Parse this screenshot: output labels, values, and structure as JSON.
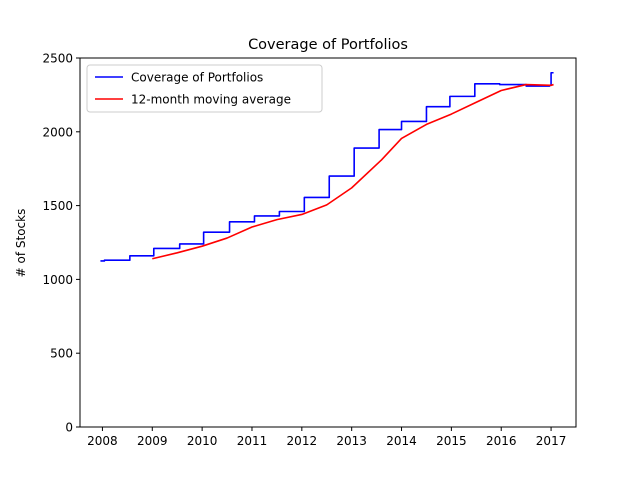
{
  "chart_data": {
    "type": "line",
    "title": "Coverage of Portfolios",
    "xlabel": "",
    "ylabel": "# of Stocks",
    "xlim": [
      2007.55,
      2017.5
    ],
    "ylim": [
      0,
      2500
    ],
    "x_ticks": [
      2008,
      2009,
      2010,
      2011,
      2012,
      2013,
      2014,
      2015,
      2016,
      2017
    ],
    "x_tick_labels": [
      "2008",
      "2009",
      "2010",
      "2011",
      "2012",
      "2013",
      "2014",
      "2015",
      "2016",
      "2017"
    ],
    "y_ticks": [
      0,
      500,
      1000,
      1500,
      2000,
      2500
    ],
    "y_tick_labels": [
      "0",
      "500",
      "1000",
      "1500",
      "2000",
      "2500"
    ],
    "grid": false,
    "legend_position": "top-left",
    "series": [
      {
        "name": "Coverage of Portfolios",
        "color": "#0000ff",
        "step": true,
        "x": [
          2007.96,
          2008.04,
          2008.55,
          2009.03,
          2009.55,
          2010.03,
          2010.55,
          2011.05,
          2011.55,
          2012.05,
          2012.55,
          2013.05,
          2013.55,
          2014.0,
          2014.5,
          2014.97,
          2015.47,
          2015.97,
          2016.5,
          2016.97,
          2017.0,
          2017.05
        ],
        "y": [
          1125,
          1130,
          1160,
          1210,
          1240,
          1320,
          1390,
          1430,
          1460,
          1555,
          1700,
          1890,
          2015,
          2070,
          2170,
          2240,
          2325,
          2320,
          2310,
          2315,
          2400,
          2400
        ]
      },
      {
        "name": "12-month moving average",
        "color": "#ff0000",
        "step": false,
        "x": [
          2009.0,
          2009.5,
          2010.0,
          2010.5,
          2011.0,
          2011.5,
          2012.0,
          2012.5,
          2013.0,
          2013.6,
          2014.0,
          2014.5,
          2015.0,
          2015.5,
          2016.0,
          2016.5,
          2017.0,
          2017.05
        ],
        "y": [
          1140,
          1180,
          1225,
          1280,
          1355,
          1405,
          1440,
          1505,
          1620,
          1810,
          1955,
          2050,
          2120,
          2200,
          2280,
          2320,
          2315,
          2320
        ]
      }
    ]
  }
}
